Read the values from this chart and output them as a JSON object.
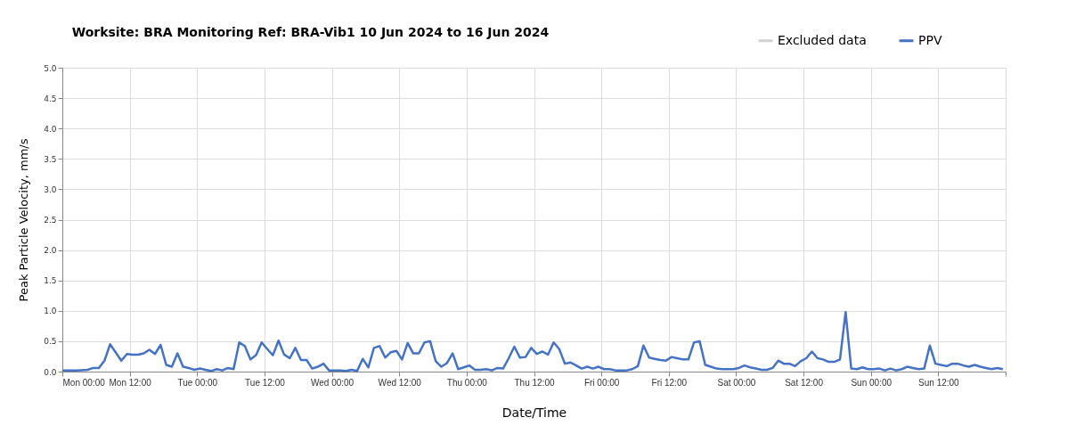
{
  "chart_data": {
    "type": "line",
    "title": "Worksite: BRA   Monitoring Ref: BRA-Vib1     10 Jun 2024 to 16 Jun 2024",
    "xlabel": "Date/Time",
    "ylabel": "Peak Particle Velocity, mm/s",
    "xlim": [
      "2024-06-10T00:00",
      "2024-06-17T00:00"
    ],
    "xticks": [
      {
        "value": "2024-06-10T00:00",
        "label": "Mon 00:00"
      },
      {
        "value": "2024-06-10T12:00",
        "label": "Mon 12:00"
      },
      {
        "value": "2024-06-11T00:00",
        "label": "Tue 00:00"
      },
      {
        "value": "2024-06-11T12:00",
        "label": "Tue 12:00"
      },
      {
        "value": "2024-06-12T00:00",
        "label": "Wed 00:00"
      },
      {
        "value": "2024-06-12T12:00",
        "label": "Wed 12:00"
      },
      {
        "value": "2024-06-13T00:00",
        "label": "Thu 00:00"
      },
      {
        "value": "2024-06-13T12:00",
        "label": "Thu 12:00"
      },
      {
        "value": "2024-06-14T00:00",
        "label": "Fri 00:00"
      },
      {
        "value": "2024-06-14T12:00",
        "label": "Fri 12:00"
      },
      {
        "value": "2024-06-15T00:00",
        "label": "Sat 00:00"
      },
      {
        "value": "2024-06-15T12:00",
        "label": "Sat 12:00"
      },
      {
        "value": "2024-06-16T00:00",
        "label": "Sun 00:00"
      },
      {
        "value": "2024-06-16T12:00",
        "label": "Sun 12:00"
      },
      {
        "value": "2024-06-17T00:00",
        "label": null
      }
    ],
    "ylim": [
      0,
      5
    ],
    "yticks": [
      {
        "value": 0,
        "label": "0.0"
      },
      {
        "value": 0.5,
        "label": "0.5"
      },
      {
        "value": 1,
        "label": "1.0"
      },
      {
        "value": 1.5,
        "label": "1.5"
      },
      {
        "value": 2,
        "label": "2.0"
      },
      {
        "value": 2.5,
        "label": "2.5"
      },
      {
        "value": 3,
        "label": "3.0"
      },
      {
        "value": 3.5,
        "label": "3.5"
      },
      {
        "value": 4,
        "label": "4.0"
      },
      {
        "value": 4.5,
        "label": "4.5"
      },
      {
        "value": 5,
        "label": "5.0"
      }
    ],
    "grid": true,
    "legend": "top right",
    "marker": "none",
    "line_style": "solid",
    "series": [
      {
        "name": "Excluded data",
        "type": "area",
        "color": "#d0d0d0"
      },
      {
        "name": "PPV",
        "type": "line",
        "color": "#4472c4",
        "x": [
          "2024-06-10T00:00",
          "2024-06-10T02:30",
          "2024-06-10T04:30",
          "2024-06-10T05:30",
          "2024-06-10T06:30",
          "2024-06-10T07:30",
          "2024-06-10T08:30",
          "2024-06-10T10:30",
          "2024-06-10T11:30",
          "2024-06-10T12:30",
          "2024-06-10T13:30",
          "2024-06-10T14:30",
          "2024-06-10T15:30",
          "2024-06-10T16:30",
          "2024-06-10T17:30",
          "2024-06-10T18:30",
          "2024-06-10T19:30",
          "2024-06-10T20:30",
          "2024-06-10T21:30",
          "2024-06-10T22:30",
          "2024-06-10T23:30",
          "2024-06-11T00:30",
          "2024-06-11T01:30",
          "2024-06-11T02:30",
          "2024-06-11T03:30",
          "2024-06-11T04:30",
          "2024-06-11T05:30",
          "2024-06-11T06:30",
          "2024-06-11T07:30",
          "2024-06-11T08:30",
          "2024-06-11T09:30",
          "2024-06-11T10:30",
          "2024-06-11T11:30",
          "2024-06-11T12:30",
          "2024-06-11T13:30",
          "2024-06-11T14:30",
          "2024-06-11T15:30",
          "2024-06-11T16:30",
          "2024-06-11T17:30",
          "2024-06-11T18:30",
          "2024-06-11T19:30",
          "2024-06-11T20:30",
          "2024-06-11T21:30",
          "2024-06-11T22:30",
          "2024-06-11T23:30",
          "2024-06-12T00:30",
          "2024-06-12T01:30",
          "2024-06-12T02:30",
          "2024-06-12T03:30",
          "2024-06-12T04:30",
          "2024-06-12T05:30",
          "2024-06-12T06:30",
          "2024-06-12T07:30",
          "2024-06-12T08:30",
          "2024-06-12T09:30",
          "2024-06-12T10:30",
          "2024-06-12T11:30",
          "2024-06-12T12:30",
          "2024-06-12T13:30",
          "2024-06-12T14:30",
          "2024-06-12T15:30",
          "2024-06-12T16:30",
          "2024-06-12T17:30",
          "2024-06-12T18:30",
          "2024-06-12T19:30",
          "2024-06-12T20:30",
          "2024-06-12T21:30",
          "2024-06-12T22:30",
          "2024-06-12T23:30",
          "2024-06-13T00:30",
          "2024-06-13T01:30",
          "2024-06-13T02:30",
          "2024-06-13T03:30",
          "2024-06-13T04:30",
          "2024-06-13T05:30",
          "2024-06-13T06:30",
          "2024-06-13T07:30",
          "2024-06-13T08:30",
          "2024-06-13T09:30",
          "2024-06-13T10:30",
          "2024-06-13T11:30",
          "2024-06-13T12:30",
          "2024-06-13T13:30",
          "2024-06-13T14:30",
          "2024-06-13T15:30",
          "2024-06-13T16:30",
          "2024-06-13T17:30",
          "2024-06-13T18:30",
          "2024-06-13T19:30",
          "2024-06-13T20:30",
          "2024-06-13T21:30",
          "2024-06-13T22:30",
          "2024-06-13T23:30",
          "2024-06-14T00:30",
          "2024-06-14T01:30",
          "2024-06-14T02:30",
          "2024-06-14T03:30",
          "2024-06-14T04:30",
          "2024-06-14T05:30",
          "2024-06-14T06:30",
          "2024-06-14T07:30",
          "2024-06-14T08:30",
          "2024-06-14T09:30",
          "2024-06-14T10:30",
          "2024-06-14T11:30",
          "2024-06-14T12:30",
          "2024-06-14T13:30",
          "2024-06-14T14:30",
          "2024-06-14T15:30",
          "2024-06-14T16:30",
          "2024-06-14T17:30",
          "2024-06-14T18:30",
          "2024-06-14T19:30",
          "2024-06-14T20:30",
          "2024-06-14T21:30",
          "2024-06-14T22:30",
          "2024-06-14T23:30",
          "2024-06-15T00:30",
          "2024-06-15T01:30",
          "2024-06-15T02:30",
          "2024-06-15T03:30",
          "2024-06-15T04:30",
          "2024-06-15T05:30",
          "2024-06-15T06:30",
          "2024-06-15T07:30",
          "2024-06-15T08:30",
          "2024-06-15T09:30",
          "2024-06-15T10:30",
          "2024-06-15T11:30",
          "2024-06-15T12:30",
          "2024-06-15T13:30",
          "2024-06-15T14:30",
          "2024-06-15T15:30",
          "2024-06-15T16:30",
          "2024-06-15T17:30",
          "2024-06-15T18:30",
          "2024-06-15T19:30",
          "2024-06-15T20:30",
          "2024-06-15T21:30",
          "2024-06-15T22:30",
          "2024-06-15T23:30",
          "2024-06-16T00:30",
          "2024-06-16T01:30",
          "2024-06-16T02:30",
          "2024-06-16T03:30",
          "2024-06-16T04:30",
          "2024-06-16T05:30",
          "2024-06-16T06:30",
          "2024-06-16T07:30",
          "2024-06-16T08:30",
          "2024-06-16T09:30",
          "2024-06-16T10:30",
          "2024-06-16T11:30",
          "2024-06-16T12:30",
          "2024-06-16T13:30",
          "2024-06-16T14:30",
          "2024-06-16T15:30",
          "2024-06-16T16:30",
          "2024-06-16T17:30",
          "2024-06-16T18:30",
          "2024-06-16T19:30",
          "2024-06-16T20:30",
          "2024-06-16T21:30",
          "2024-06-16T22:30",
          "2024-06-16T23:30"
        ],
        "values": [
          0.02,
          0.02,
          0.03,
          0.06,
          0.06,
          0.18,
          0.45,
          0.18,
          0.29,
          0.28,
          0.28,
          0.3,
          0.36,
          0.29,
          0.44,
          0.11,
          0.08,
          0.3,
          0.08,
          0.06,
          0.03,
          0.05,
          0.03,
          0.01,
          0.04,
          0.02,
          0.06,
          0.04,
          0.48,
          0.42,
          0.2,
          0.27,
          0.48,
          0.37,
          0.27,
          0.51,
          0.28,
          0.22,
          0.39,
          0.19,
          0.19,
          0.05,
          0.08,
          0.13,
          0.02,
          0.02,
          0.02,
          0.01,
          0.03,
          0.01,
          0.21,
          0.07,
          0.39,
          0.42,
          0.23,
          0.32,
          0.34,
          0.2,
          0.47,
          0.3,
          0.3,
          0.48,
          0.5,
          0.17,
          0.08,
          0.14,
          0.3,
          0.04,
          0.07,
          0.1,
          0.03,
          0.03,
          0.04,
          0.02,
          0.06,
          0.05,
          0.22,
          0.41,
          0.23,
          0.24,
          0.39,
          0.29,
          0.33,
          0.28,
          0.48,
          0.37,
          0.13,
          0.15,
          0.1,
          0.05,
          0.08,
          0.05,
          0.08,
          0.04,
          0.04,
          0.02,
          0.02,
          0.02,
          0.04,
          0.09,
          0.43,
          0.23,
          0.21,
          0.19,
          0.18,
          0.24,
          0.22,
          0.2,
          0.2,
          0.48,
          0.5,
          0.11,
          0.08,
          0.05,
          0.04,
          0.04,
          0.04,
          0.06,
          0.1,
          0.07,
          0.05,
          0.03,
          0.03,
          0.06,
          0.18,
          0.13,
          0.13,
          0.09,
          0.17,
          0.22,
          0.33,
          0.22,
          0.2,
          0.16,
          0.16,
          0.2,
          0.98,
          0.05,
          0.04,
          0.07,
          0.04,
          0.04,
          0.05,
          0.02,
          0.05,
          0.02,
          0.04,
          0.08,
          0.06,
          0.04,
          0.05,
          0.43,
          0.13,
          0.11,
          0.09,
          0.13,
          0.13,
          0.1,
          0.08,
          0.11,
          0.08,
          0.06,
          0.04,
          0.06,
          0.04
        ]
      }
    ]
  }
}
